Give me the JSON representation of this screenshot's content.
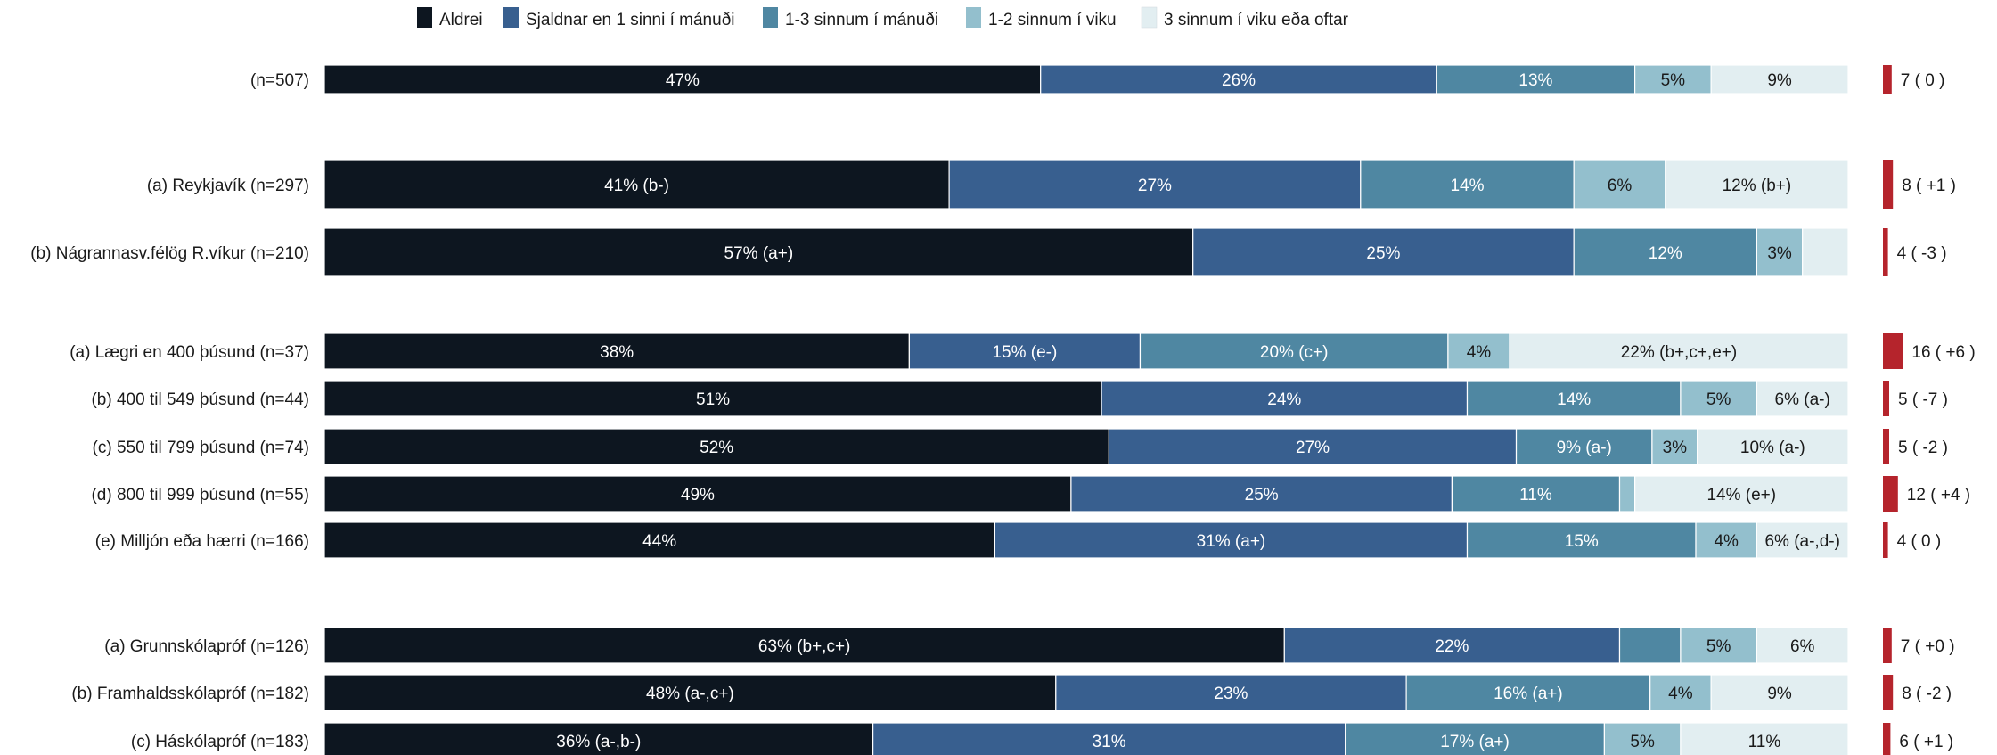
{
  "chart_data": {
    "type": "bar",
    "orientation": "horizontal",
    "stacked": true,
    "legend_position": "top",
    "colors": [
      "#0d1620",
      "#385f8f",
      "#4f87a2",
      "#93bfcd",
      "#e2eef1"
    ],
    "label_colors": [
      "#ffffff",
      "#ffffff",
      "#ffffff",
      "#1a1a1a",
      "#1a1a1a"
    ],
    "side_bar_color": "#b5242c",
    "legend": [
      "Aldrei",
      "Sjaldnar en 1 sinni í mánuði",
      "1-3 sinnum í mánuði",
      "1-2 sinnum í viku",
      "3 sinnum í viku eða oftar"
    ],
    "rows": [
      {
        "label": "(n=507)",
        "values": [
          47,
          26,
          13,
          5,
          9
        ],
        "texts": [
          "47%",
          "26%",
          "13%",
          "5%",
          "9%"
        ],
        "side_value": 7,
        "side_text": "7 ( 0 )"
      },
      {
        "label": "(a) Reykjavík (n=297)",
        "values": [
          41,
          27,
          14,
          6,
          12
        ],
        "texts": [
          "41% (b-)",
          "27%",
          "14%",
          "6%",
          "12% (b+)"
        ],
        "side_value": 8,
        "side_text": "8 ( +1 )"
      },
      {
        "label": "(b) Nágrannasv.félög R.víkur (n=210)",
        "values": [
          57,
          25,
          12,
          3,
          3
        ],
        "texts": [
          "57% (a+)",
          "25%",
          "12%",
          "3%",
          ""
        ],
        "side_value": 4,
        "side_text": "4 ( -3 )"
      },
      {
        "label": "(a) Lægri en 400 þúsund (n=37)",
        "values": [
          38,
          15,
          20,
          4,
          22
        ],
        "texts": [
          "38%",
          "15% (e-)",
          "20% (c+)",
          "4%",
          "22% (b+,c+,e+)"
        ],
        "side_value": 16,
        "side_text": "16 ( +6 )"
      },
      {
        "label": "(b) 400 til 549 þúsund (n=44)",
        "values": [
          51,
          24,
          14,
          5,
          6
        ],
        "texts": [
          "51%",
          "24%",
          "14%",
          "5%",
          "6% (a-)"
        ],
        "side_value": 5,
        "side_text": "5 ( -7 )"
      },
      {
        "label": "(c) 550 til 799 þúsund (n=74)",
        "values": [
          52,
          27,
          9,
          3,
          10
        ],
        "texts": [
          "52%",
          "27%",
          "9% (a-)",
          "3%",
          "10% (a-)"
        ],
        "side_value": 5,
        "side_text": "5 ( -2 )"
      },
      {
        "label": "(d) 800 til 999 þúsund (n=55)",
        "values": [
          49,
          25,
          11,
          1,
          14
        ],
        "texts": [
          "49%",
          "25%",
          "11%",
          "",
          "14% (e+)"
        ],
        "side_value": 12,
        "side_text": "12 ( +4 )"
      },
      {
        "label": "(e) Milljón eða hærri (n=166)",
        "values": [
          44,
          31,
          15,
          4,
          6
        ],
        "texts": [
          "44%",
          "31% (a+)",
          "15%",
          "4%",
          "6% (a-,d-)"
        ],
        "side_value": 4,
        "side_text": "4 ( 0 )"
      },
      {
        "label": "(a) Grunnskólapróf (n=126)",
        "values": [
          63,
          22,
          4,
          5,
          6
        ],
        "texts": [
          "63% (b+,c+)",
          "22%",
          "",
          "5%",
          "6%"
        ],
        "side_value": 7,
        "side_text": "7 ( +0 )"
      },
      {
        "label": "(b) Framhaldsskólapróf (n=182)",
        "values": [
          48,
          23,
          16,
          4,
          9
        ],
        "texts": [
          "48% (a-,c+)",
          "23%",
          "16% (a+)",
          "4%",
          "9%"
        ],
        "side_value": 8,
        "side_text": "8 ( -2 )"
      },
      {
        "label": "(c) Háskólapróf (n=183)",
        "values": [
          36,
          31,
          17,
          5,
          11
        ],
        "texts": [
          "36% (a-,b-)",
          "31%",
          "17% (a+)",
          "5%",
          "11%"
        ],
        "side_value": 6,
        "side_text": "6 ( +1 )"
      }
    ]
  }
}
